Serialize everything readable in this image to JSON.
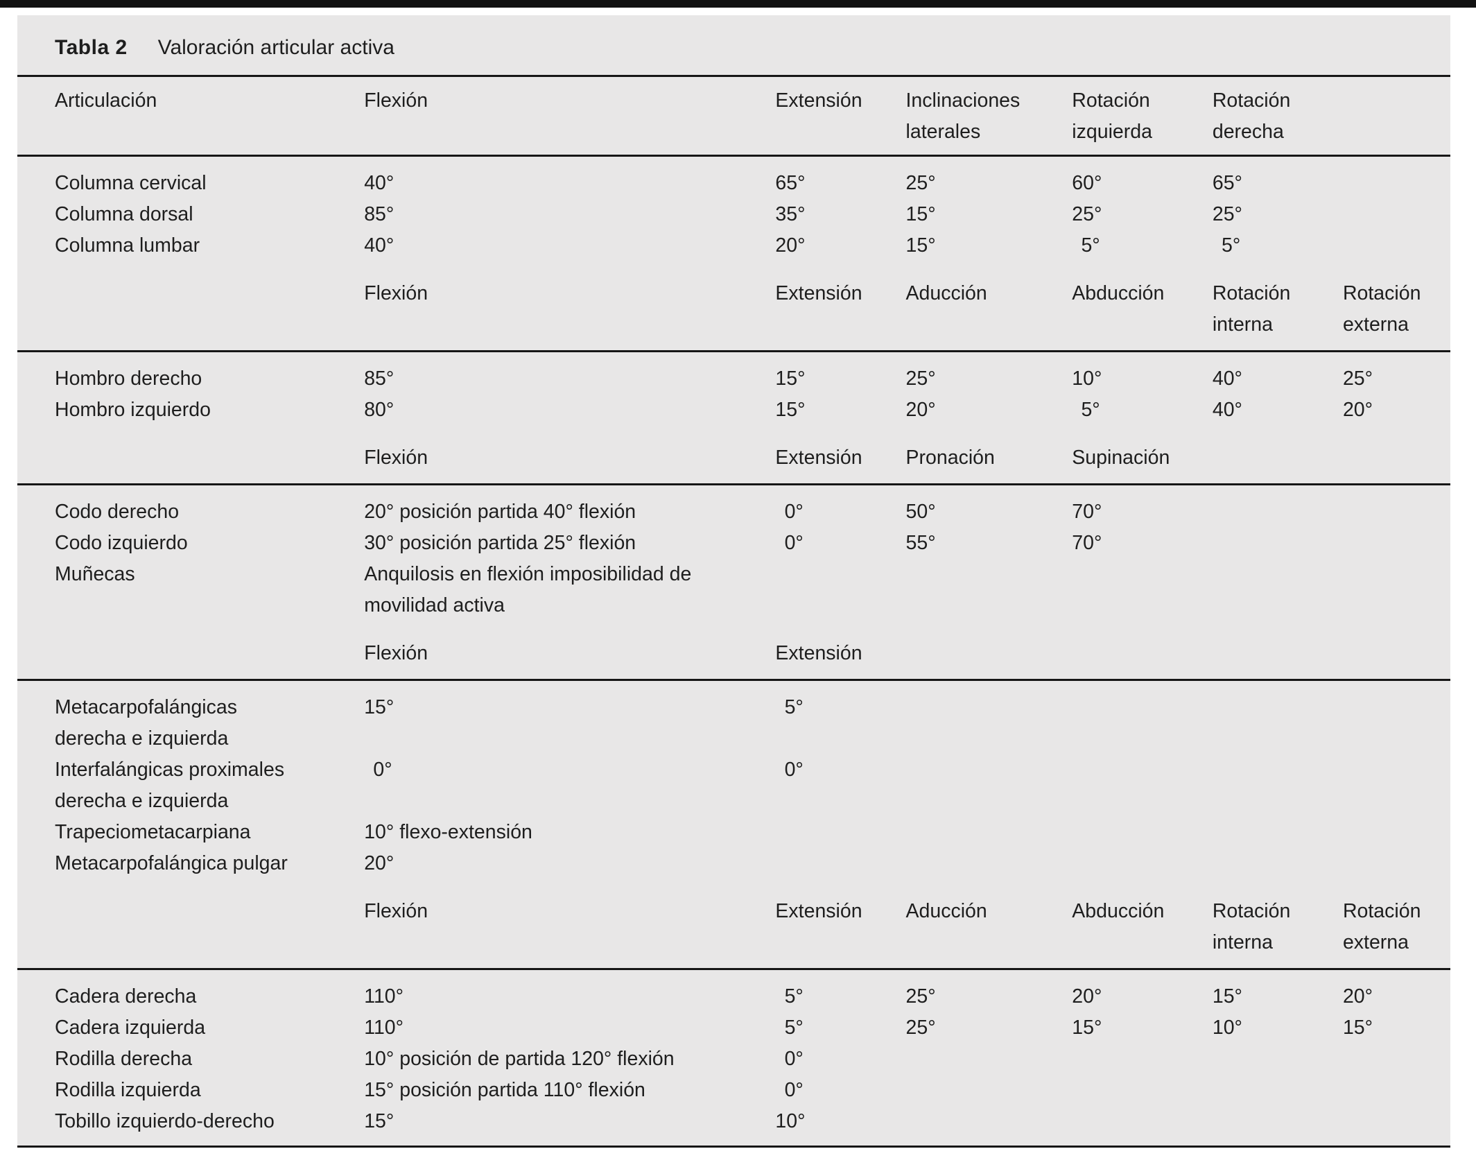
{
  "title": {
    "label": "Tabla 2",
    "text": "Valoración articular activa"
  },
  "colors": {
    "panel_bg": "#e8e7e7",
    "text": "#1e1e1e",
    "rule": "#161616",
    "top_bar": "#121212"
  },
  "header": [
    "Articulación",
    "Flexión",
    "Extensión",
    [
      "Inclinaciones",
      "laterales"
    ],
    [
      "Rotación",
      "izquierda"
    ],
    [
      "Rotación",
      "derecha"
    ]
  ],
  "sections": {
    "columna": {
      "rows": [
        {
          "label": "Columna cervical",
          "values": [
            "40°",
            "65°",
            "25°",
            "60°",
            "65°"
          ]
        },
        {
          "label": "Columna dorsal",
          "values": [
            "85°",
            "35°",
            "15°",
            "25°",
            "25°"
          ]
        },
        {
          "label": "Columna lumbar",
          "values": [
            "40°",
            "20°",
            "15°",
            "5°",
            "5°"
          ]
        }
      ],
      "subheader": [
        "Flexión",
        "Extensión",
        "Aducción",
        "Abducción",
        [
          "Rotación",
          "interna"
        ],
        [
          "Rotación",
          "externa"
        ]
      ]
    },
    "hombro": {
      "rows": [
        {
          "label": "Hombro derecho",
          "values": [
            "85°",
            "15°",
            "25°",
            "10°",
            "40°",
            "25°"
          ]
        },
        {
          "label": "Hombro izquierdo",
          "values": [
            "80°",
            "15°",
            "20°",
            "5°",
            "40°",
            "20°"
          ]
        }
      ],
      "subheader": [
        "Flexión",
        "Extensión",
        "Pronación",
        "Supinación"
      ]
    },
    "codo": {
      "rows": [
        {
          "label": "Codo derecho",
          "values": [
            "20° posición partida 40° flexión",
            "0°",
            "50°",
            "70°"
          ]
        },
        {
          "label": "Codo izquierdo",
          "values": [
            "30° posición partida 25° flexión",
            "0°",
            "55°",
            "70°"
          ]
        },
        {
          "label": "Muñecas",
          "values": [
            [
              "Anquilosis en flexión imposibilidad de",
              "movilidad activa"
            ]
          ]
        }
      ],
      "subheader": [
        "Flexión",
        "Extensión"
      ]
    },
    "mano": {
      "rows": [
        {
          "label": [
            "Metacarpofalángicas",
            "derecha e izquierda"
          ],
          "values": [
            "15°",
            "5°"
          ]
        },
        {
          "label": [
            "Interfalángicas proximales",
            "derecha e izquierda"
          ],
          "values": [
            "0°",
            "0°"
          ]
        },
        {
          "label": "Trapeciometacarpiana",
          "values": [
            "10° flexo-extensión"
          ]
        },
        {
          "label": "Metacarpofalángica pulgar",
          "values": [
            "20°"
          ]
        }
      ],
      "subheader": [
        "Flexión",
        "Extensión",
        "Aducción",
        "Abducción",
        [
          "Rotación",
          "interna"
        ],
        [
          "Rotación",
          "externa"
        ]
      ]
    },
    "cadera": {
      "rows": [
        {
          "label": "Cadera derecha",
          "values": [
            "110°",
            "5°",
            "25°",
            "20°",
            "15°",
            "20°"
          ]
        },
        {
          "label": "Cadera izquierda",
          "values": [
            "110°",
            "5°",
            "25°",
            "15°",
            "10°",
            "15°"
          ]
        },
        {
          "label": "Rodilla derecha",
          "values": [
            "10° posición de partida 120° flexión",
            "0°"
          ]
        },
        {
          "label": "Rodilla izquierda",
          "values": [
            "15° posición partida 110° flexión",
            "0°"
          ]
        },
        {
          "label": "Tobillo izquierdo-derecho",
          "values": [
            "15°",
            "10°"
          ]
        }
      ]
    }
  }
}
